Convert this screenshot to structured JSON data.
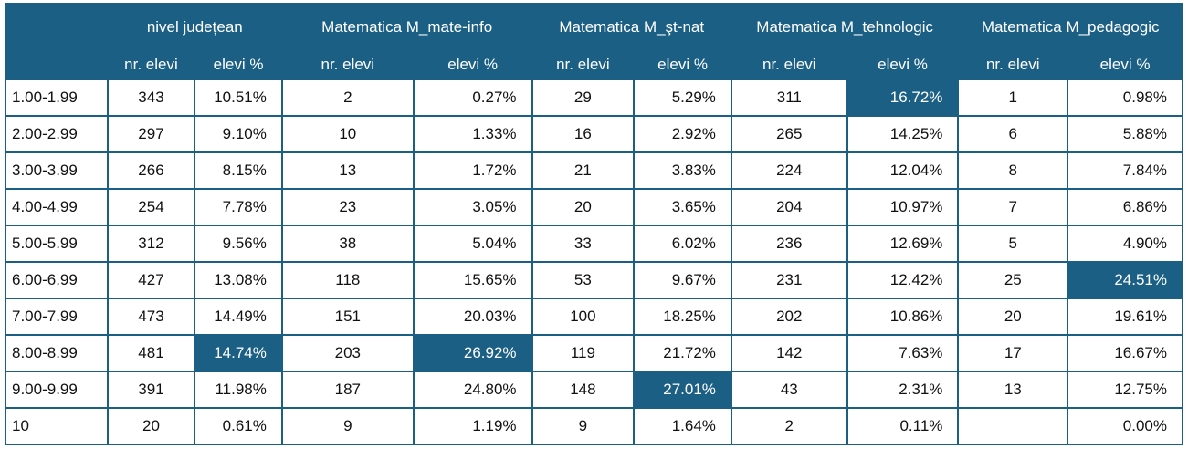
{
  "groups": [
    "",
    "nivel județean",
    "Matematica M_mate-info",
    "Matematica M_şt-nat",
    "Matematica M_tehnologic",
    "Matematica M_pedagogic"
  ],
  "subheaders": [
    "",
    "nr. elevi",
    "elevi %",
    "nr. elevi",
    "elevi %",
    "nr. elevi",
    "elevi %",
    "nr. elevi",
    "elevi %",
    "nr. elevi",
    "elevi %"
  ],
  "rows": [
    [
      "1.00-1.99",
      "343",
      "10.51%",
      "2",
      "0.27%",
      "29",
      "5.29%",
      "311",
      "16.72%",
      "1",
      "0.98%"
    ],
    [
      "2.00-2.99",
      "297",
      "9.10%",
      "10",
      "1.33%",
      "16",
      "2.92%",
      "265",
      "14.25%",
      "6",
      "5.88%"
    ],
    [
      "3.00-3.99",
      "266",
      "8.15%",
      "13",
      "1.72%",
      "21",
      "3.83%",
      "224",
      "12.04%",
      "8",
      "7.84%"
    ],
    [
      "4.00-4.99",
      "254",
      "7.78%",
      "23",
      "3.05%",
      "20",
      "3.65%",
      "204",
      "10.97%",
      "7",
      "6.86%"
    ],
    [
      "5.00-5.99",
      "312",
      "9.56%",
      "38",
      "5.04%",
      "33",
      "6.02%",
      "236",
      "12.69%",
      "5",
      "4.90%"
    ],
    [
      "6.00-6.99",
      "427",
      "13.08%",
      "118",
      "15.65%",
      "53",
      "9.67%",
      "231",
      "12.42%",
      "25",
      "24.51%"
    ],
    [
      "7.00-7.99",
      "473",
      "14.49%",
      "151",
      "20.03%",
      "100",
      "18.25%",
      "202",
      "10.86%",
      "20",
      "19.61%"
    ],
    [
      "8.00-8.99",
      "481",
      "14.74%",
      "203",
      "26.92%",
      "119",
      "21.72%",
      "142",
      "7.63%",
      "17",
      "16.67%"
    ],
    [
      "9.00-9.99",
      "391",
      "11.98%",
      "187",
      "24.80%",
      "148",
      "27.01%",
      "43",
      "2.31%",
      "13",
      "12.75%"
    ],
    [
      "10",
      "20",
      "0.61%",
      "9",
      "1.19%",
      "9",
      "1.64%",
      "2",
      "0.11%",
      "",
      "0.00%"
    ]
  ],
  "highlights": [
    [
      0,
      8
    ],
    [
      5,
      10
    ],
    [
      7,
      2
    ],
    [
      7,
      4
    ],
    [
      8,
      6
    ]
  ],
  "colors": {
    "header_bg": "#1b5f84",
    "border": "#1b5f84",
    "highlight_bg": "#1b5f84",
    "header_text": "#ffffff"
  }
}
